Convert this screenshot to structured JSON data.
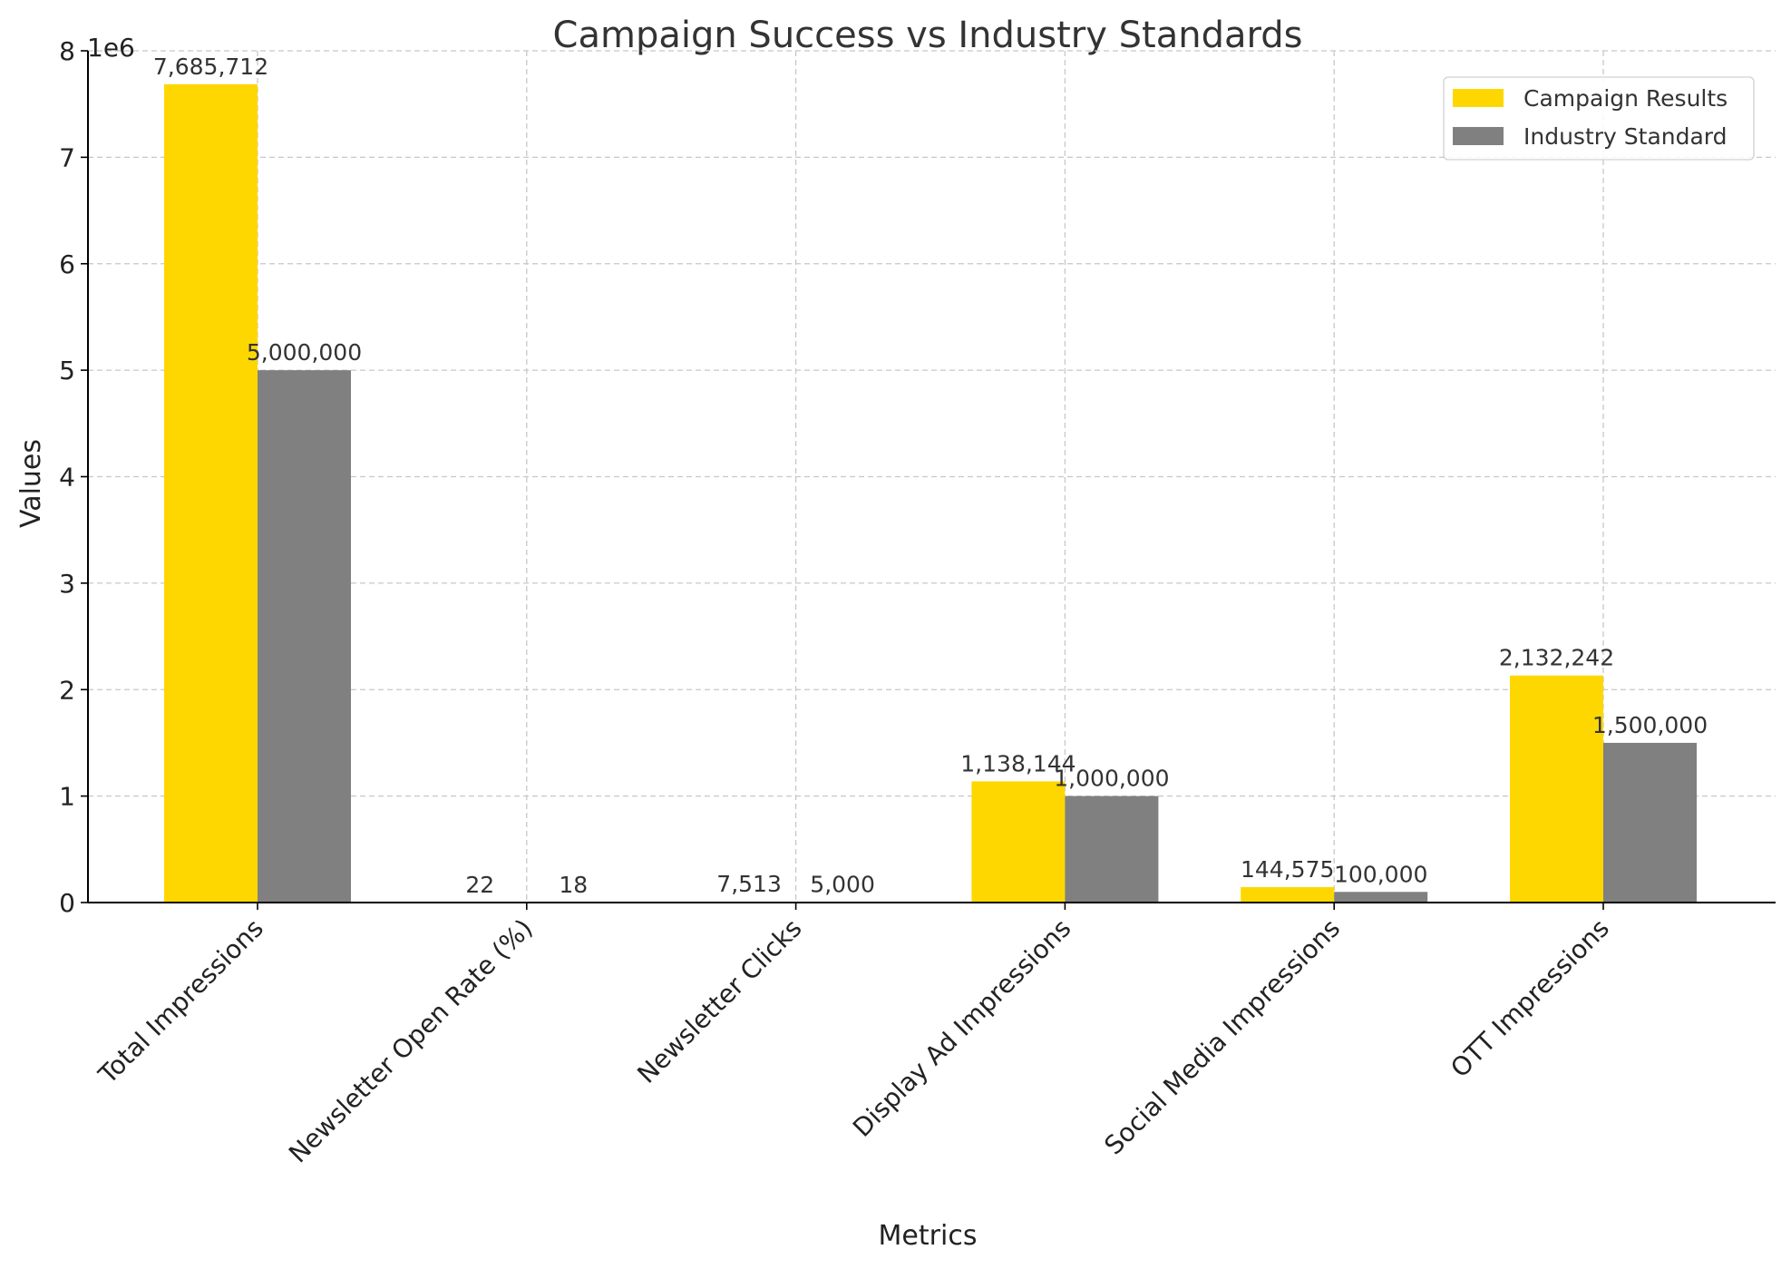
{
  "chart_data": {
    "type": "bar",
    "title": "Campaign Success vs Industry Standards",
    "xlabel": "Metrics",
    "ylabel": "Values",
    "y_scale_label": "1e6",
    "ylim": [
      0,
      8000000
    ],
    "y_ticks": [
      0,
      1000000,
      2000000,
      3000000,
      4000000,
      5000000,
      6000000,
      7000000,
      8000000
    ],
    "y_tick_labels": [
      "0",
      "1",
      "2",
      "3",
      "4",
      "5",
      "6",
      "7",
      "8"
    ],
    "grid": true,
    "legend_position": "top-right",
    "categories": [
      "Total Impressions",
      "Newsletter Open Rate (%)",
      "Newsletter Clicks",
      "Display Ad Impressions",
      "Social Media Impressions",
      "OTT Impressions"
    ],
    "series": [
      {
        "name": "Campaign Results",
        "color": "#FFD700",
        "values": [
          7685712,
          22,
          7513,
          1138144,
          144575,
          2132242
        ],
        "labels": [
          "7,685,712",
          "22",
          "7,513",
          "1,138,144",
          "144,575",
          "2,132,242"
        ]
      },
      {
        "name": "Industry Standard",
        "color": "#808080",
        "values": [
          5000000,
          18,
          5000,
          1000000,
          100000,
          1500000
        ],
        "labels": [
          "5,000,000",
          "18",
          "5,000",
          "1,000,000",
          "100,000",
          "1,500,000"
        ]
      }
    ]
  }
}
